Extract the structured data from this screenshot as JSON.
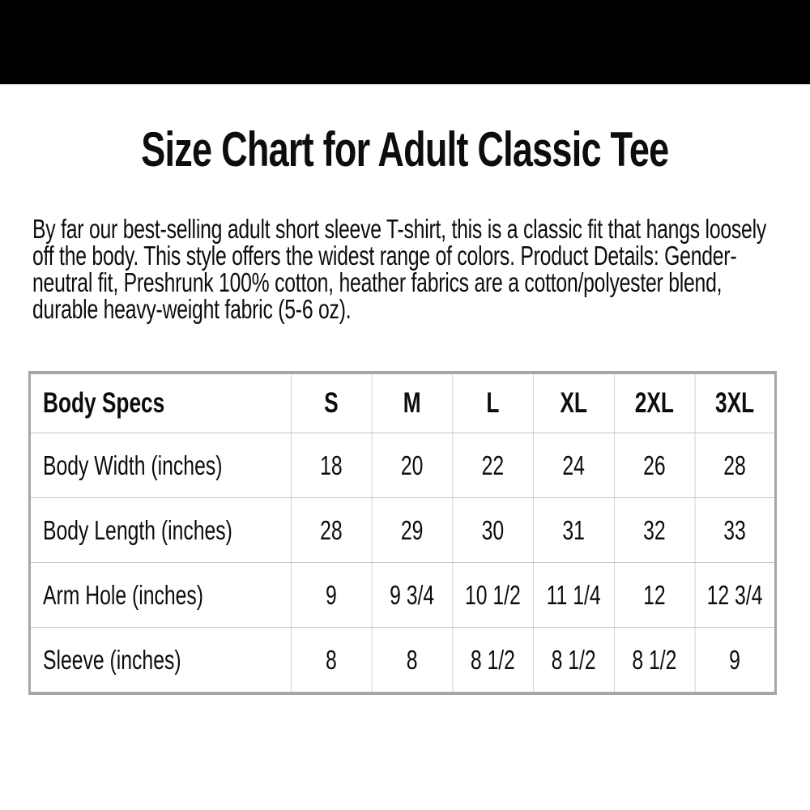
{
  "page": {
    "title": "Size Chart for Adult Classic Tee",
    "description": "By far our best-selling adult short sleeve T-shirt, this is a classic fit that hangs loosely off the body. This style offers the widest range of colors. Product Details: Gender-neutral fit, Preshrunk 100% cotton, heather fabrics are a cotton/polyester blend, durable heavy-weight fabric (5-6 oz)."
  },
  "colors": {
    "header_bar": "#000000",
    "background": "#ffffff",
    "text": "#0d0d0d",
    "table_outer_border": "#a6a6a6",
    "table_inner_border": "#c6c6c6"
  },
  "size_chart": {
    "columns": [
      "Body Specs",
      "S",
      "M",
      "L",
      "XL",
      "2XL",
      "3XL"
    ],
    "rows": [
      {
        "label": "Body Width (inches)",
        "values": [
          "18",
          "20",
          "22",
          "24",
          "26",
          "28"
        ]
      },
      {
        "label": "Body Length (inches)",
        "values": [
          "28",
          "29",
          "30",
          "31",
          "32",
          "33"
        ]
      },
      {
        "label": "Arm Hole (inches)",
        "values": [
          "9",
          "9 3/4",
          "10 1/2",
          "11 1/4",
          "12",
          "12 3/4"
        ]
      },
      {
        "label": "Sleeve (inches)",
        "values": [
          "8",
          "8",
          "8 1/2",
          "8 1/2",
          "8 1/2",
          "9"
        ]
      }
    ]
  }
}
